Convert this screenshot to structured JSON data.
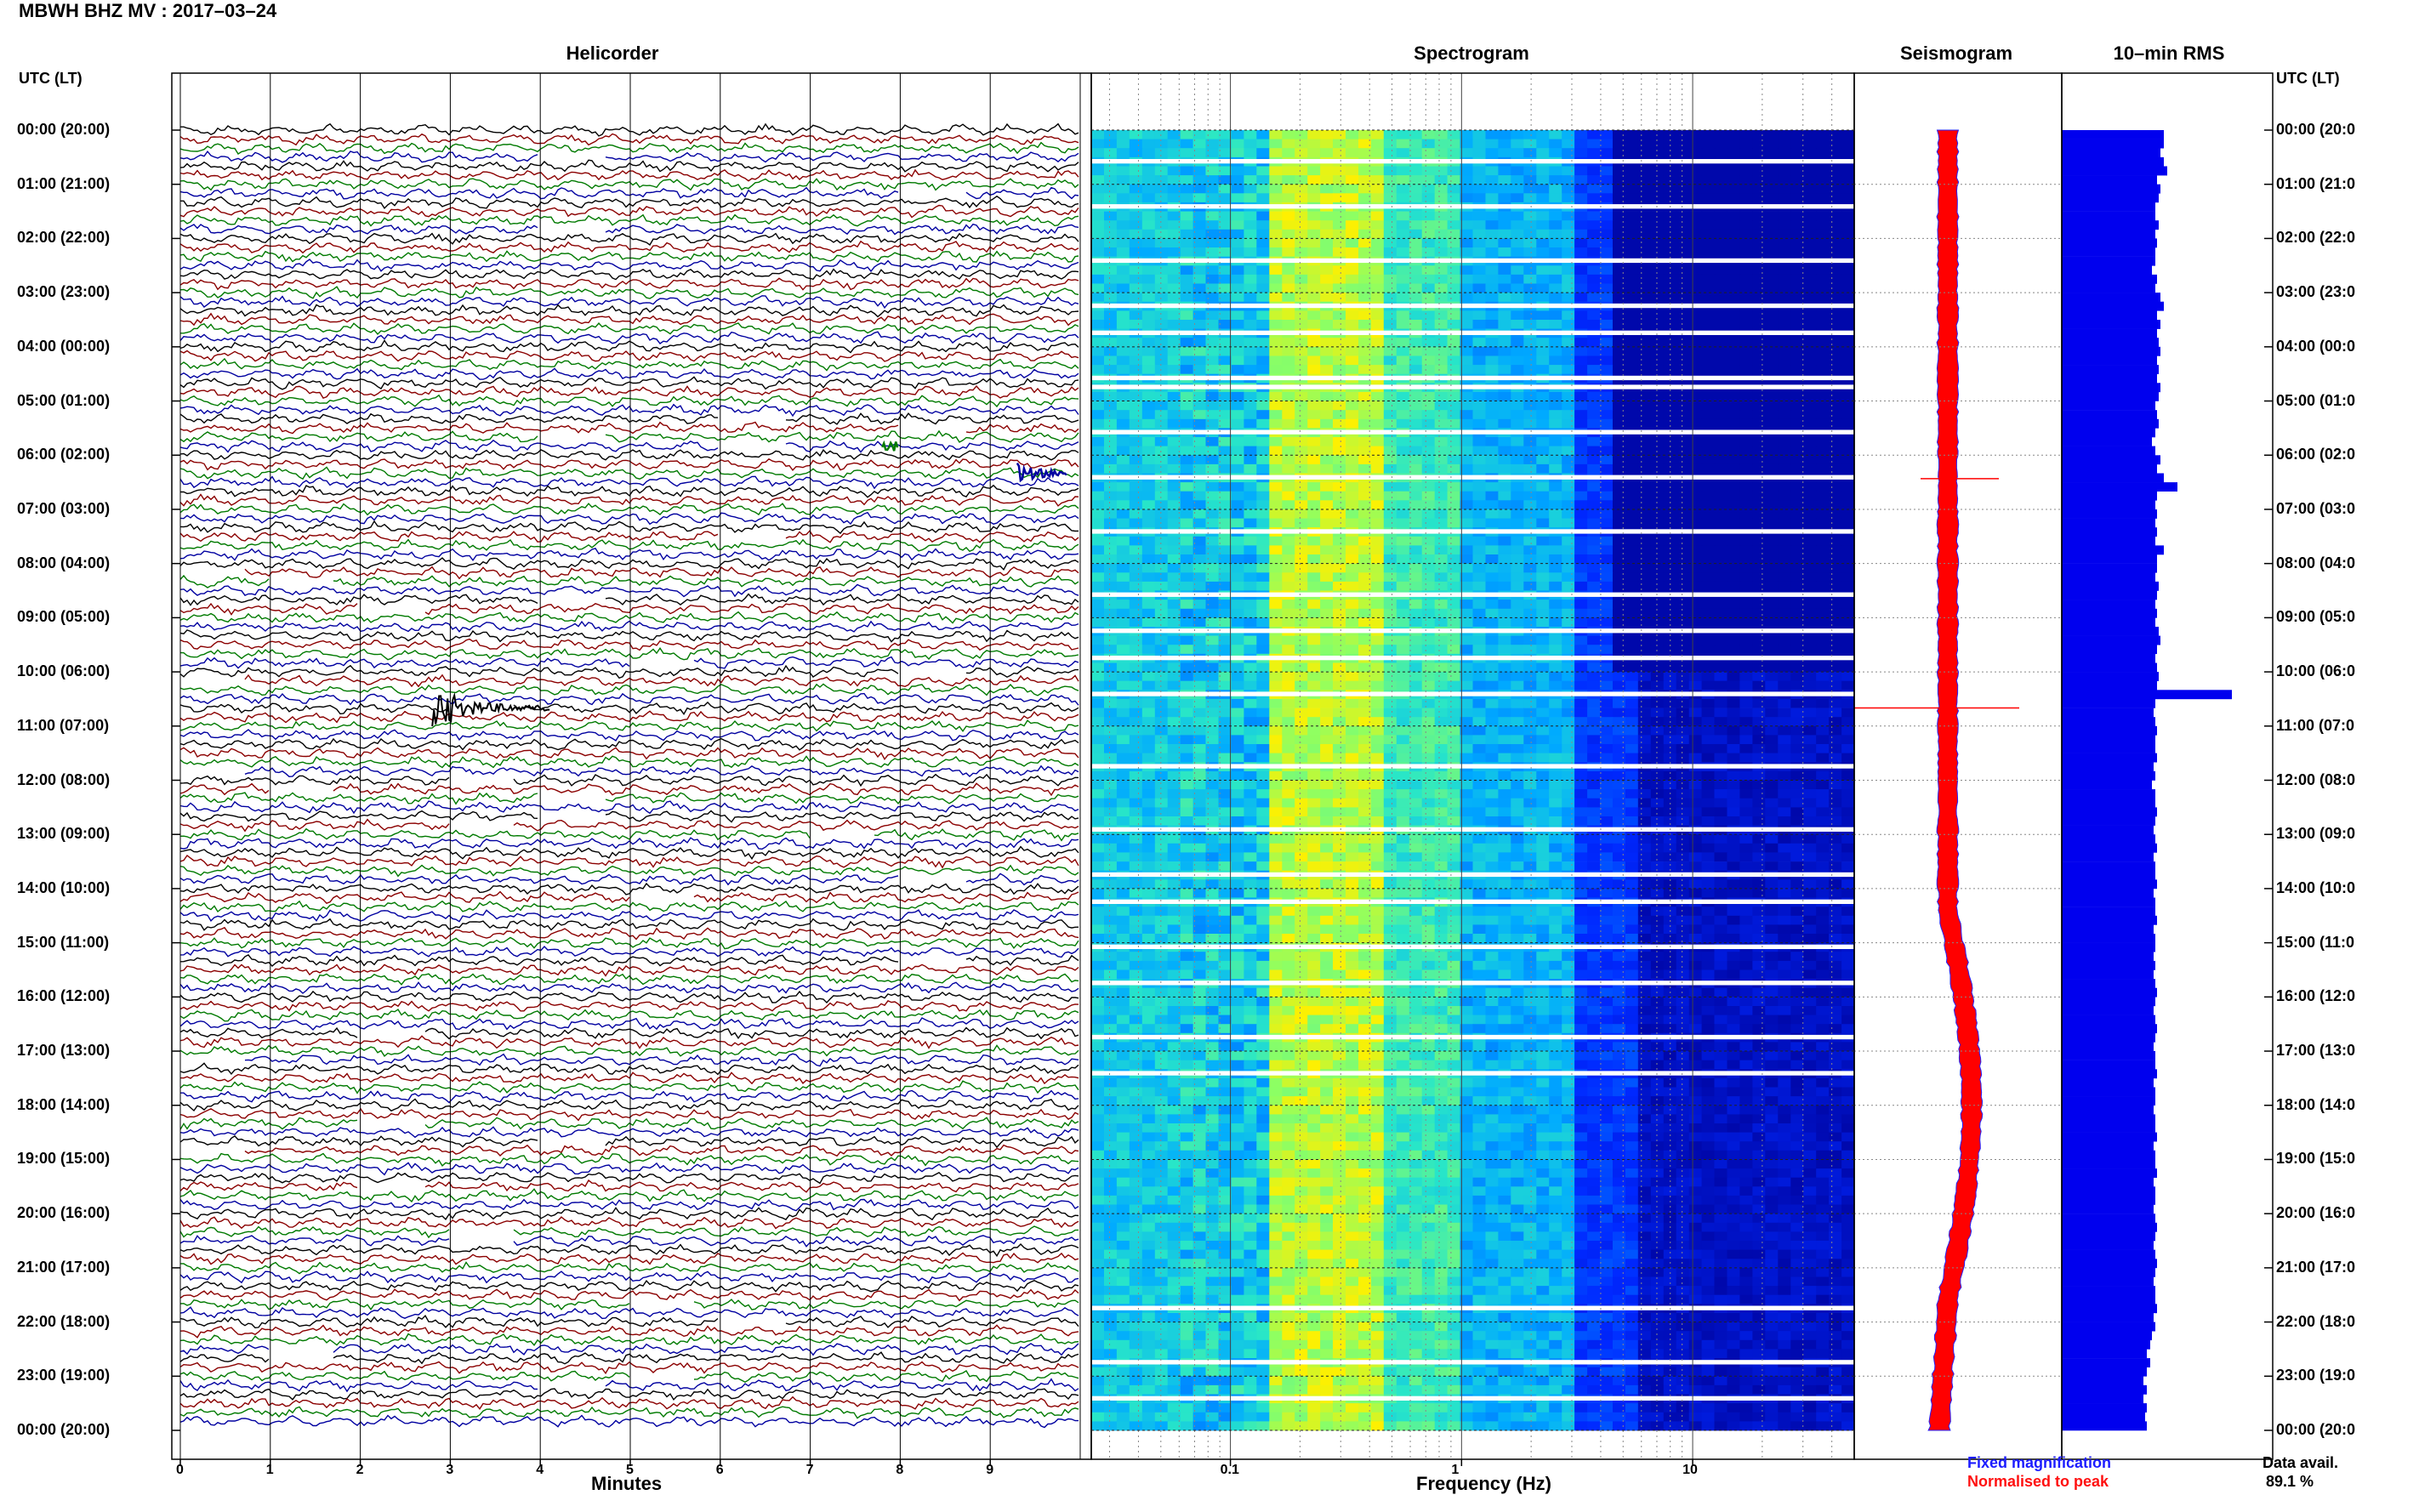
{
  "title": "MBWH BHZ MV : 2017–03–24",
  "panels": {
    "helicorder": "Helicorder",
    "spectrogram": "Spectrogram",
    "seismogram": "Seismogram",
    "rms": "10–min RMS"
  },
  "tz_label": "UTC (LT)",
  "time_labels": [
    "00:00 (20:00)",
    "01:00 (21:00)",
    "02:00 (22:00)",
    "03:00 (23:00)",
    "04:00 (00:00)",
    "05:00 (01:00)",
    "06:00 (02:00)",
    "07:00 (03:00)",
    "08:00 (04:00)",
    "09:00 (05:00)",
    "10:00 (06:00)",
    "11:00 (07:00)",
    "12:00 (08:00)",
    "13:00 (09:00)",
    "14:00 (10:00)",
    "15:00 (11:00)",
    "16:00 (12:00)",
    "17:00 (13:00)",
    "18:00 (14:00)",
    "19:00 (15:00)",
    "20:00 (16:00)",
    "21:00 (17:00)",
    "22:00 (18:00)",
    "23:00 (19:00)",
    "00:00 (20:00)"
  ],
  "time_labels_right": [
    "00:00 (20:0",
    "01:00 (21:0",
    "02:00 (22:0",
    "03:00 (23:0",
    "04:00 (00:0",
    "05:00 (01:0",
    "06:00 (02:0",
    "07:00 (03:0",
    "08:00 (04:0",
    "09:00 (05:0",
    "10:00 (06:0",
    "11:00 (07:0",
    "12:00 (08:0",
    "13:00 (09:0",
    "14:00 (10:0",
    "15:00 (11:0",
    "16:00 (12:0",
    "17:00 (13:0",
    "18:00 (14:0",
    "19:00 (15:0",
    "20:00 (16:0",
    "21:00 (17:0",
    "22:00 (18:0",
    "23:00 (19:0",
    "00:00 (20:0"
  ],
  "helicorder_axis": {
    "label": "Minutes",
    "ticks": [
      "0",
      "1",
      "2",
      "3",
      "4",
      "5",
      "6",
      "7",
      "8",
      "9"
    ]
  },
  "spectrogram_axis": {
    "label": "Frequency (Hz)",
    "ticks": [
      "0.1",
      "1",
      "10"
    ],
    "scale": "log",
    "range": [
      0.025,
      50
    ]
  },
  "legend": {
    "fixed": "Fixed magnification",
    "normalised": "Normalised to peak"
  },
  "data_avail": {
    "label": "Data avail.",
    "value": "89.1 %"
  },
  "colors": {
    "trace_black": "#000000",
    "trace_red": "#8b0000",
    "trace_green": "#007a00",
    "trace_blue": "#0000a0",
    "rms_bar": "#0000ee",
    "seis_red": "#ff0000",
    "seis_blue": "#2020ff"
  },
  "chart_data": [
    {
      "type": "line",
      "title": "Helicorder",
      "xlabel": "Minutes",
      "xlim": [
        0,
        10
      ],
      "rows_per_hour": 6,
      "trace_color_cycle": [
        "black",
        "red",
        "green",
        "blue"
      ],
      "events": [
        {
          "time_utc": "10:40",
          "minute": 3.0,
          "description": "large event"
        },
        {
          "time_utc": "06:10",
          "minute": 9.5
        },
        {
          "time_utc": "05:50",
          "minute": 7.8
        }
      ]
    },
    {
      "type": "heatmap",
      "title": "Spectrogram",
      "xlabel": "Frequency (Hz)",
      "xscale": "log",
      "xticks": [
        0.1,
        1,
        10
      ],
      "peak_band_hz": [
        0.15,
        0.4
      ]
    },
    {
      "type": "bar",
      "title": "10–min RMS",
      "orientation": "horizontal",
      "values_relative": [
        0.6,
        0.6,
        0.58,
        0.6,
        0.62,
        0.56,
        0.58,
        0.57,
        0.55,
        0.55,
        0.57,
        0.55,
        0.56,
        0.55,
        0.55,
        0.53,
        0.56,
        0.55,
        0.58,
        0.6,
        0.56,
        0.58,
        0.56,
        0.57,
        0.58,
        0.56,
        0.57,
        0.56,
        0.58,
        0.57,
        0.55,
        0.56,
        0.57,
        0.55,
        0.53,
        0.55,
        0.58,
        0.56,
        0.6,
        0.68,
        0.56,
        0.55,
        0.56,
        0.55,
        0.56,
        0.55,
        0.6,
        0.56,
        0.56,
        0.55,
        0.57,
        0.56,
        0.55,
        0.56,
        0.55,
        0.57,
        0.58,
        0.56,
        0.55,
        0.56,
        0.57,
        0.56,
        1.0,
        0.55,
        0.54,
        0.55,
        0.56,
        0.55,
        0.55,
        0.56,
        0.54,
        0.55,
        0.53,
        0.55,
        0.55,
        0.56,
        0.55,
        0.54,
        0.55,
        0.56,
        0.54,
        0.55,
        0.55,
        0.56,
        0.54,
        0.55,
        0.55,
        0.56,
        0.54,
        0.55,
        0.55,
        0.54,
        0.55,
        0.54,
        0.55,
        0.56,
        0.55,
        0.54,
        0.55,
        0.56,
        0.55,
        0.54,
        0.55,
        0.55,
        0.56,
        0.54,
        0.55,
        0.55,
        0.54,
        0.55,
        0.55,
        0.56,
        0.54,
        0.55,
        0.55,
        0.56,
        0.54,
        0.55,
        0.55,
        0.54,
        0.55,
        0.56,
        0.55,
        0.54,
        0.55,
        0.56,
        0.55,
        0.54,
        0.55,
        0.55,
        0.56,
        0.54,
        0.55,
        0.53,
        0.52,
        0.5,
        0.52,
        0.5,
        0.48,
        0.5,
        0.48,
        0.5,
        0.49,
        0.5
      ]
    }
  ]
}
